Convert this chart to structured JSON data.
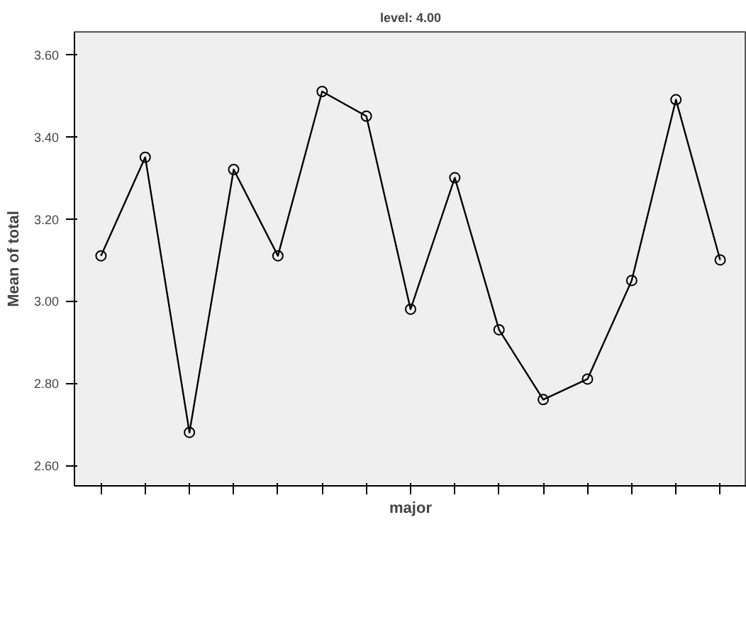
{
  "chart_data": {
    "type": "line",
    "title": "level: 4.00",
    "xlabel": "major",
    "ylabel": "Mean of total",
    "categories": [
      null,
      null,
      null,
      null,
      null,
      null,
      null,
      null,
      null,
      null,
      null,
      null,
      null,
      null,
      null
    ],
    "series": [
      {
        "color": "#000000",
        "values": [
          3.11,
          3.35,
          2.68,
          3.32,
          3.11,
          3.51,
          3.45,
          2.98,
          3.3,
          2.93,
          2.76,
          2.81,
          3.05,
          3.49,
          3.1
        ]
      }
    ],
    "ylim": [
      2.55,
      3.655
    ],
    "yticks": [
      {
        "value": 2.6,
        "label": "2.60"
      },
      {
        "value": 2.8,
        "label": "2.80"
      },
      {
        "value": 3.0,
        "label": "3.00"
      },
      {
        "value": 3.2,
        "label": "3.20"
      },
      {
        "value": 3.4,
        "label": "3.40"
      },
      {
        "value": 3.6,
        "label": "3.60"
      }
    ],
    "marker": "circle",
    "line_style": "solid",
    "grid": false
  }
}
